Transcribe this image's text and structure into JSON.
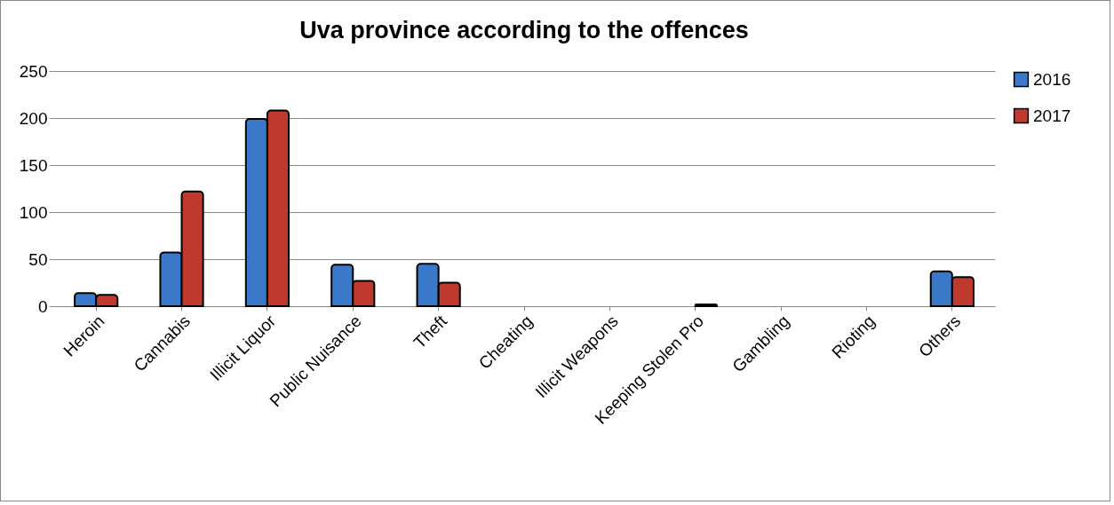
{
  "chart_data": {
    "type": "bar",
    "title": "Uva province according to the offences",
    "categories": [
      "Heroin",
      "Cannabis",
      "Illicit Liquor",
      "Public Nuisance",
      "Theft",
      "Cheating",
      "Illicit Weapons",
      "Keeping Stolen Pro",
      "Gambling",
      "Rioting",
      "Others"
    ],
    "series": [
      {
        "name": "2016",
        "color": "#3a78c9",
        "values": [
          14,
          57,
          199,
          44,
          45,
          0,
          0,
          0,
          0,
          0,
          37
        ]
      },
      {
        "name": "2017",
        "color": "#c0392f",
        "values": [
          12,
          122,
          208,
          27,
          25,
          0,
          0,
          2,
          0,
          0,
          31
        ]
      }
    ],
    "ylim": [
      0,
      250
    ],
    "yticks": [
      0,
      50,
      100,
      150,
      200,
      250
    ],
    "grid": "y",
    "legend": "right"
  }
}
